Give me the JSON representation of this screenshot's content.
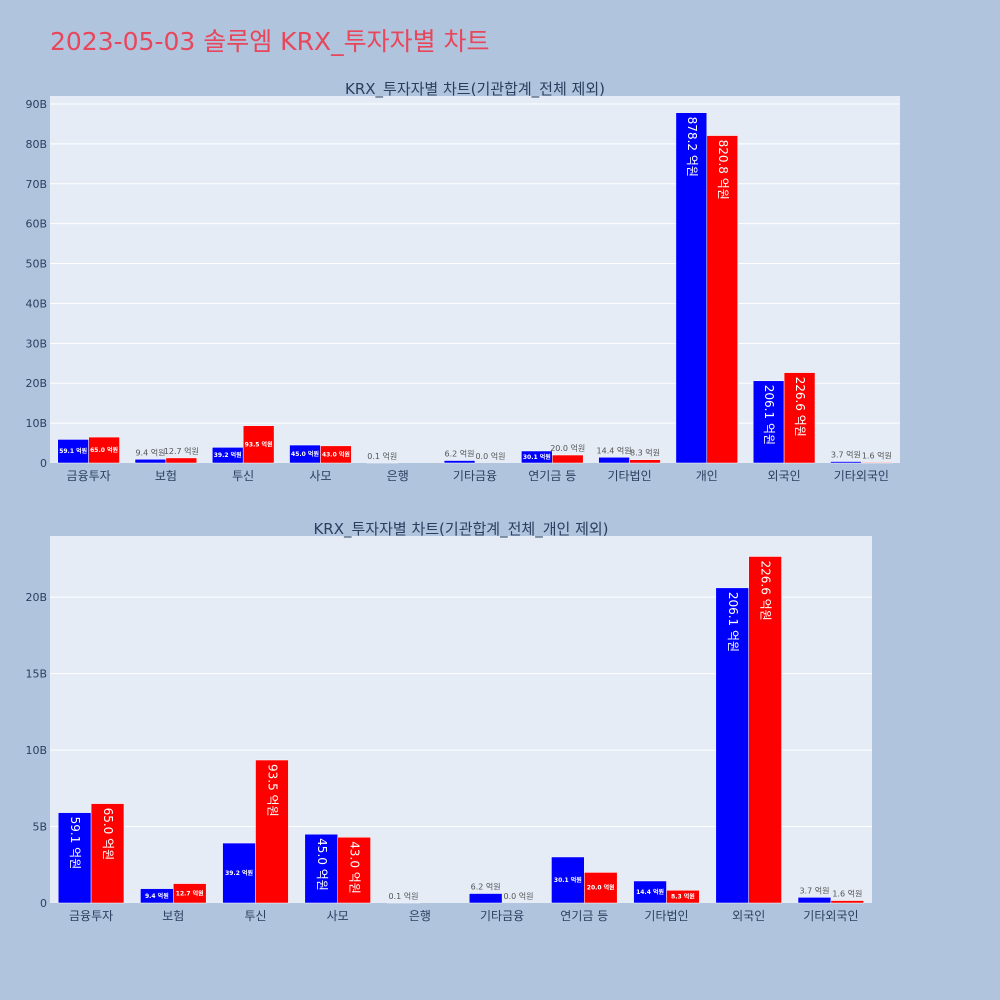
{
  "page": {
    "title": "2023-05-03 솔루엠 KRX_투자자별 차트"
  },
  "colors": {
    "background": "#b0c4de",
    "plot_bg": "#e5ecf6",
    "title": "#e8465a",
    "series_a": "#0000ff",
    "series_b": "#ff0000"
  },
  "chart_data": [
    {
      "type": "bar",
      "title": "KRX_투자자별 차트(기관합계_전체 제외)",
      "categories": [
        "금융투자",
        "보험",
        "투신",
        "사모",
        "은행",
        "기타금융",
        "연기금 등",
        "기타법인",
        "개인",
        "외국인",
        "기타외국인"
      ],
      "series": [
        {
          "color": "#0000ff",
          "values": [
            5.91,
            0.94,
            3.92,
            4.5,
            0.01,
            0.62,
            3.01,
            1.44,
            87.82,
            20.61,
            0.37
          ],
          "labels": [
            "59.1 억원",
            "9.4 억원",
            "39.2 억원",
            "45.0 억원",
            "0.1 억원",
            "6.2 억원",
            "30.1 억원",
            "14.4 억원",
            "878.2 억원",
            "206.1 억원",
            "3.7 억원"
          ]
        },
        {
          "color": "#ff0000",
          "values": [
            6.5,
            1.27,
            9.35,
            4.3,
            0.0,
            0.0,
            2.0,
            0.83,
            82.08,
            22.66,
            0.16
          ],
          "labels": [
            "65.0 억원",
            "12.7 억원",
            "93.5 억원",
            "43.0 억원",
            "",
            "0.0 억원",
            "20.0 억원",
            "8.3 억원",
            "820.8 억원",
            "226.6 억원",
            "1.6 억원"
          ]
        }
      ],
      "ylim": [
        0,
        92
      ],
      "yticks": [
        0,
        10,
        20,
        30,
        40,
        50,
        60,
        70,
        80,
        90
      ],
      "ytick_labels": [
        "0",
        "10B",
        "20B",
        "30B",
        "40B",
        "50B",
        "60B",
        "70B",
        "80B",
        "90B"
      ],
      "grid": true
    },
    {
      "type": "bar",
      "title": "KRX_투자자별 차트(기관합계_전체_개인 제외)",
      "categories": [
        "금융투자",
        "보험",
        "투신",
        "사모",
        "은행",
        "기타금융",
        "연기금 등",
        "기타법인",
        "외국인",
        "기타외국인"
      ],
      "series": [
        {
          "color": "#0000ff",
          "values": [
            5.91,
            0.94,
            3.92,
            4.5,
            0.01,
            0.62,
            3.01,
            1.44,
            20.61,
            0.37
          ],
          "labels": [
            "59.1 억원",
            "9.4 억원",
            "39.2 억원",
            "45.0 억원",
            "0.1 억원",
            "6.2 억원",
            "30.1 억원",
            "14.4 억원",
            "206.1 억원",
            "3.7 억원"
          ]
        },
        {
          "color": "#ff0000",
          "values": [
            6.5,
            1.27,
            9.35,
            4.3,
            0.0,
            0.0,
            2.0,
            0.83,
            22.66,
            0.16
          ],
          "labels": [
            "65.0 억원",
            "12.7 억원",
            "93.5 억원",
            "43.0 억원",
            "",
            "0.0 억원",
            "20.0 억원",
            "8.3 억원",
            "226.6 억원",
            "1.6 억원"
          ]
        }
      ],
      "ylim": [
        0,
        24
      ],
      "yticks": [
        0,
        5,
        10,
        15,
        20
      ],
      "ytick_labels": [
        "0",
        "5B",
        "10B",
        "15B",
        "20B"
      ],
      "grid": true
    }
  ]
}
